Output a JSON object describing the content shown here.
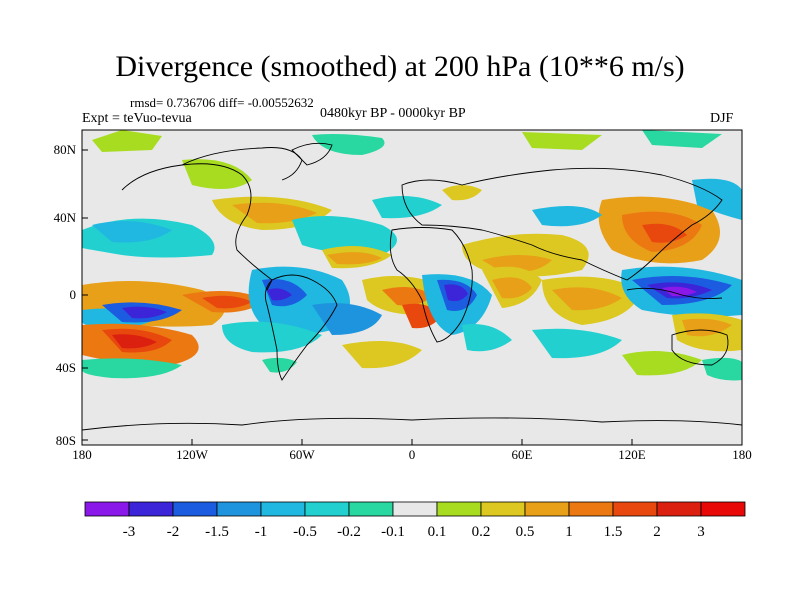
{
  "title": "Divergence (smoothed) at 200 hPa (10**6 m/s)",
  "stats": "rmsd= 0.736706 diff= -0.00552632",
  "left_label": "Expt = teVuo-tevua",
  "center_label": "0480kyr BP - 0000kyr BP",
  "right_label": "DJF",
  "lat_ticks": [
    "80N",
    "40N",
    "0",
    "40S",
    "80S"
  ],
  "lon_ticks": [
    "180",
    "120W",
    "60W",
    "0",
    "60E",
    "120E",
    "180"
  ],
  "colorbar": {
    "labels": [
      "-3",
      "-2",
      "-1.5",
      "-1",
      "-0.5",
      "-0.2",
      "-0.1",
      "0.1",
      "0.2",
      "0.5",
      "1",
      "1.5",
      "2",
      "3"
    ],
    "colors": [
      "#8a18e8",
      "#3c24d8",
      "#1c5ce0",
      "#1f94de",
      "#20b8e0",
      "#22d0d0",
      "#28d8a0",
      "#e8e8e8",
      "#a8dc20",
      "#dcc820",
      "#e8a018",
      "#ec7812",
      "#e8480e",
      "#dc2010",
      "#e80808"
    ]
  }
}
